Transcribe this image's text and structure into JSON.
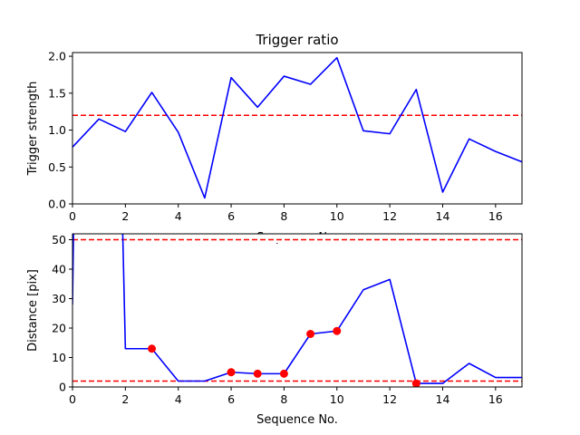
{
  "chart_data": [
    {
      "type": "line",
      "title": "Trigger ratio",
      "xlabel": "Sequence No.",
      "ylabel": "Trigger strength",
      "xlim": [
        0,
        17
      ],
      "ylim": [
        0,
        2.05
      ],
      "xticks": [
        0,
        2,
        4,
        6,
        8,
        10,
        12,
        14,
        16
      ],
      "yticks": [
        0.0,
        0.5,
        1.0,
        1.5,
        2.0
      ],
      "ytick_labels": [
        "0.0",
        "0.5",
        "1.0",
        "1.5",
        "2.0"
      ],
      "grid": false,
      "series": [
        {
          "color": "#0000ff",
          "x": [
            0,
            1,
            2,
            3,
            4,
            5,
            6,
            7,
            8,
            9,
            10,
            11,
            12,
            13,
            14,
            15,
            16,
            17
          ],
          "y": [
            0.77,
            1.15,
            0.98,
            1.51,
            0.97,
            0.08,
            1.71,
            1.31,
            1.73,
            1.62,
            1.98,
            0.99,
            0.95,
            1.55,
            0.16,
            0.88,
            0.71,
            0.57
          ]
        }
      ],
      "hlines": [
        {
          "y": 1.2,
          "color": "#ff0000",
          "style": "dashed"
        }
      ]
    },
    {
      "type": "line",
      "title": "",
      "xlabel": "Sequence No.",
      "ylabel": "Distance [pix]",
      "xlim": [
        0,
        17
      ],
      "ylim": [
        0,
        52
      ],
      "xticks": [
        0,
        2,
        4,
        6,
        8,
        10,
        12,
        14,
        16
      ],
      "yticks": [
        0,
        10,
        20,
        30,
        40,
        50
      ],
      "ytick_labels": [
        "0",
        "10",
        "20",
        "30",
        "40",
        "50"
      ],
      "grid": false,
      "series": [
        {
          "color": "#0000ff",
          "x": [
            0,
            0.05,
            1.88,
            2,
            3,
            4,
            5,
            6,
            7,
            8,
            9,
            10,
            11,
            12,
            13,
            14,
            15,
            16,
            17
          ],
          "y": [
            28,
            60,
            60,
            13,
            13,
            2,
            2,
            5,
            4.5,
            4.5,
            18,
            19,
            33,
            36.5,
            1.2,
            1.2,
            8,
            3.2,
            3.2
          ]
        }
      ],
      "markers": {
        "color": "#ff0000",
        "x": [
          3,
          6,
          7,
          8,
          9,
          10,
          13
        ],
        "y": [
          13,
          5,
          4.5,
          4.5,
          18,
          19,
          1.2
        ]
      },
      "hlines": [
        {
          "y": 50,
          "color": "#ff0000",
          "style": "dashed"
        },
        {
          "y": 2,
          "color": "#ff0000",
          "style": "dashed"
        }
      ]
    }
  ]
}
